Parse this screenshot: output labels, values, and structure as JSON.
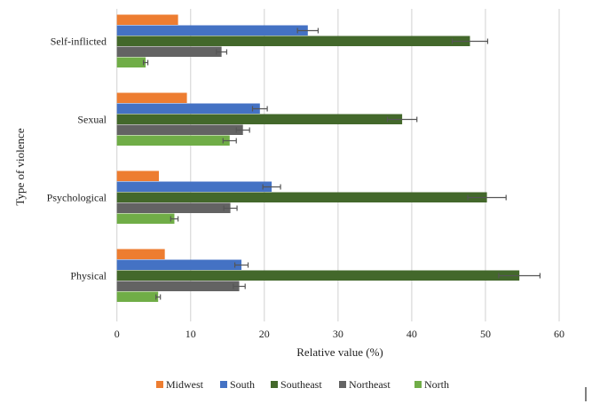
{
  "chart_data": {
    "type": "bar",
    "orientation": "horizontal",
    "ylabel": "Type of violence",
    "xlabel": "Relative value (%)",
    "xlim": [
      0,
      60
    ],
    "xticks": [
      0,
      10,
      20,
      30,
      40,
      50,
      60
    ],
    "grid": true,
    "legend_position": "bottom",
    "categories": [
      "Self-inflicted",
      "Sexual",
      "Psychological",
      "Physical"
    ],
    "series": [
      {
        "name": "Midwest",
        "color": "#ED7D31",
        "values": [
          8.3,
          9.5,
          5.7,
          6.5
        ],
        "errors": null
      },
      {
        "name": "South",
        "color": "#4472C4",
        "values": [
          25.9,
          19.4,
          21.0,
          16.9
        ],
        "errors": [
          1.4,
          1.0,
          1.2,
          0.9
        ]
      },
      {
        "name": "Southeast",
        "color": "#43682B",
        "values": [
          47.9,
          38.7,
          50.2,
          54.6
        ],
        "errors": [
          2.4,
          2.0,
          2.6,
          2.8
        ]
      },
      {
        "name": "Northeast",
        "color": "#636363",
        "values": [
          14.2,
          17.1,
          15.4,
          16.6
        ],
        "errors": [
          0.7,
          0.9,
          0.9,
          0.8
        ]
      },
      {
        "name": "North",
        "color": "#70AD47",
        "values": [
          3.9,
          15.3,
          7.8,
          5.6
        ],
        "errors": [
          0.3,
          0.9,
          0.5,
          0.3
        ]
      }
    ]
  }
}
